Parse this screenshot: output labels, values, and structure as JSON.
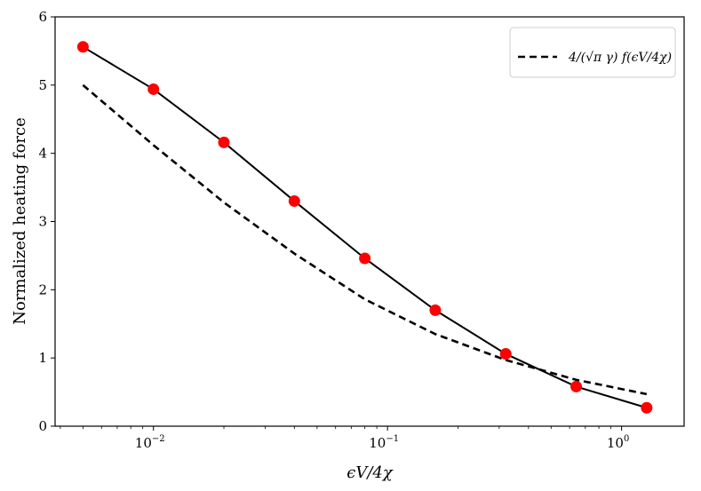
{
  "chart_data": {
    "type": "line",
    "title": "",
    "xlabel": "ϵV/4χ",
    "ylabel": "Normalized heating force",
    "xscale": "log",
    "xlim": [
      0.0038,
      1.85
    ],
    "ylim": [
      0,
      6
    ],
    "grid": false,
    "legend_position": "top-right",
    "x_ticks": [
      {
        "value": 0.01,
        "base": "10",
        "exp": "−2"
      },
      {
        "value": 0.1,
        "base": "10",
        "exp": "−1"
      },
      {
        "value": 1,
        "base": "10",
        "exp": "0"
      }
    ],
    "y_ticks": [
      0,
      1,
      2,
      3,
      4,
      5,
      6
    ],
    "series": [
      {
        "name": "",
        "style": "solid line with markers",
        "line_color": "#000000",
        "marker_color": "#ff0000",
        "x": [
          0.005,
          0.01,
          0.02,
          0.04,
          0.08,
          0.16,
          0.32,
          0.64,
          1.28
        ],
        "y": [
          5.56,
          4.94,
          4.16,
          3.3,
          2.46,
          1.7,
          1.06,
          0.58,
          0.27
        ]
      },
      {
        "name": "4/(√π γ) f(ϵV/4χ)",
        "style": "dashed",
        "line_color": "#000000",
        "x": [
          0.005,
          0.01,
          0.02,
          0.04,
          0.08,
          0.16,
          0.32,
          0.64,
          1.28
        ],
        "y": [
          5.0,
          4.12,
          3.28,
          2.53,
          1.86,
          1.35,
          0.97,
          0.68,
          0.47
        ]
      }
    ]
  }
}
